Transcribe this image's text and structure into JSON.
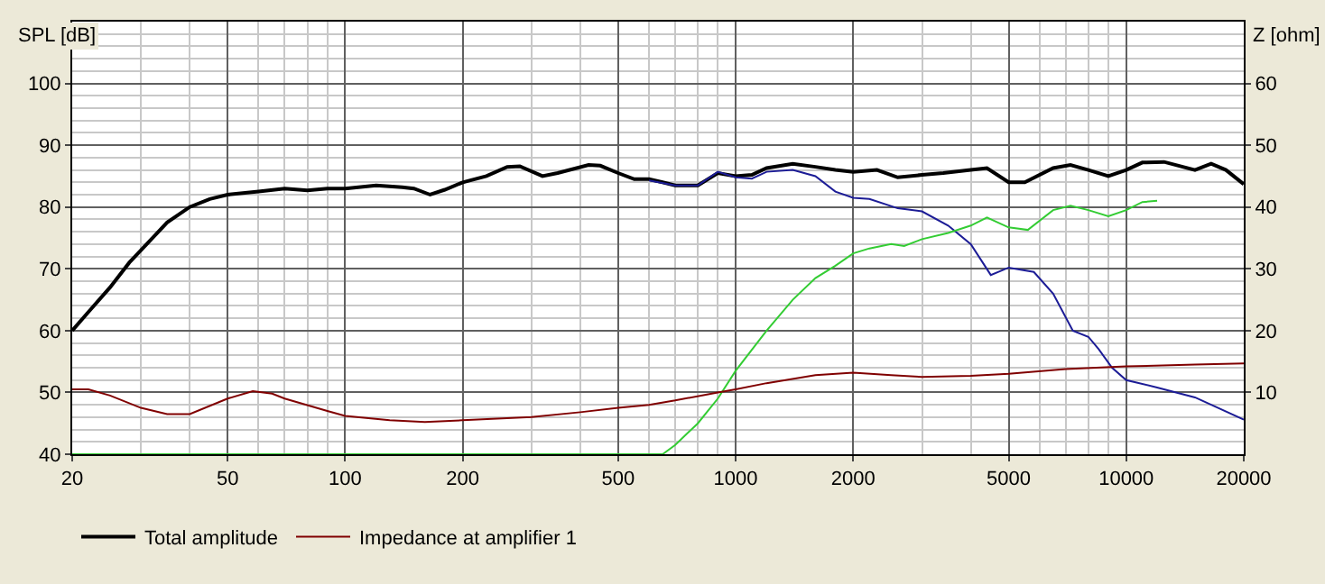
{
  "chart_data": {
    "type": "line",
    "ylabel": "SPL [dB]",
    "y2label": "Z [ohm]",
    "log": "x",
    "grid": true,
    "legend": "bottom",
    "xlim": [
      20,
      20000
    ],
    "xticks": [
      20,
      50,
      100,
      200,
      500,
      1000,
      2000,
      5000,
      10000,
      20000
    ],
    "ylim": [
      40,
      110
    ],
    "yticks": [
      40,
      50,
      60,
      70,
      80,
      90,
      100
    ],
    "y2lim": [
      0,
      70
    ],
    "y2ticks": [
      10,
      20,
      30,
      40,
      50,
      60
    ],
    "series": [
      {
        "name": "Total amplitude",
        "color": "#000000",
        "x": [
          20,
          22,
          25,
          28,
          30,
          35,
          40,
          45,
          50,
          60,
          70,
          80,
          90,
          100,
          120,
          140,
          150,
          165,
          180,
          200,
          230,
          260,
          280,
          320,
          350,
          420,
          450,
          500,
          550,
          600,
          650,
          700,
          800,
          900,
          1000,
          1100,
          1200,
          1400,
          1600,
          1800,
          2000,
          2300,
          2600,
          3000,
          3400,
          4000,
          4400,
          5000,
          5500,
          6500,
          7200,
          8000,
          9000,
          10000,
          11000,
          12500,
          15000,
          16500,
          18000,
          20000
        ],
        "values": [
          60,
          63,
          67,
          71,
          73,
          77.5,
          80,
          81.3,
          82,
          82.5,
          83,
          82.7,
          83,
          83,
          83.5,
          83.2,
          83,
          82,
          82.8,
          84,
          85,
          86.5,
          86.6,
          85,
          85.5,
          86.8,
          86.7,
          85.5,
          84.5,
          84.5,
          84,
          83.5,
          83.5,
          85.5,
          85,
          85.2,
          86.3,
          87,
          86.5,
          86,
          85.7,
          86,
          84.8,
          85.2,
          85.5,
          86,
          86.3,
          84,
          84,
          86.3,
          86.8,
          86,
          85,
          86,
          87.2,
          87.3,
          86,
          87,
          86,
          83.7
        ]
      },
      {
        "color": "#1c1c96",
        "x": [
          600,
          700,
          800,
          900,
          1000,
          1100,
          1200,
          1400,
          1600,
          1800,
          2000,
          2200,
          2600,
          3000,
          3500,
          4000,
          4500,
          5000,
          5800,
          6500,
          7300,
          8000,
          8500,
          9200,
          10000,
          12000,
          15000,
          20000
        ],
        "values": [
          84.3,
          83.5,
          83.5,
          85.7,
          84.8,
          84.6,
          85.7,
          86,
          85,
          82.5,
          81.5,
          81.3,
          79.8,
          79.3,
          77,
          74,
          69,
          70.2,
          69.5,
          66,
          60,
          59,
          57,
          54,
          52,
          50.8,
          49.2,
          45.6
        ]
      },
      {
        "color": "#33cc33",
        "x": [
          20,
          650,
          700,
          800,
          900,
          1000,
          1200,
          1400,
          1600,
          1800,
          2000,
          2200,
          2500,
          2700,
          3000,
          3500,
          4000,
          4400,
          5000,
          5600,
          6500,
          7200,
          8000,
          9000,
          10000,
          11000,
          12000
        ],
        "values": [
          40,
          40,
          41.5,
          45,
          49,
          53.5,
          60,
          65,
          68.5,
          70.5,
          72.5,
          73.3,
          74,
          73.7,
          74.8,
          75.8,
          77,
          78.3,
          76.7,
          76.3,
          79.5,
          80.2,
          79.5,
          78.5,
          79.5,
          80.8,
          81
        ]
      },
      {
        "name": "Impedance at amplifier 1",
        "color": "#800000",
        "axis": "y2",
        "x": [
          20,
          22,
          25,
          30,
          35,
          40,
          50,
          58,
          65,
          70,
          90,
          100,
          130,
          160,
          200,
          300,
          400,
          500,
          600,
          700,
          900,
          1000,
          1200,
          1600,
          2000,
          2500,
          3000,
          4000,
          5000,
          7000,
          10000,
          15000,
          20000
        ],
        "values": [
          10.5,
          10.5,
          9.5,
          7.5,
          6.5,
          6.5,
          9,
          10.2,
          9.8,
          9,
          7,
          6.2,
          5.5,
          5.2,
          5.5,
          6,
          6.8,
          7.5,
          8,
          8.7,
          10,
          10.5,
          11.5,
          12.8,
          13.2,
          12.8,
          12.5,
          12.7,
          13,
          13.8,
          14.2,
          14.5,
          14.7
        ]
      }
    ]
  }
}
